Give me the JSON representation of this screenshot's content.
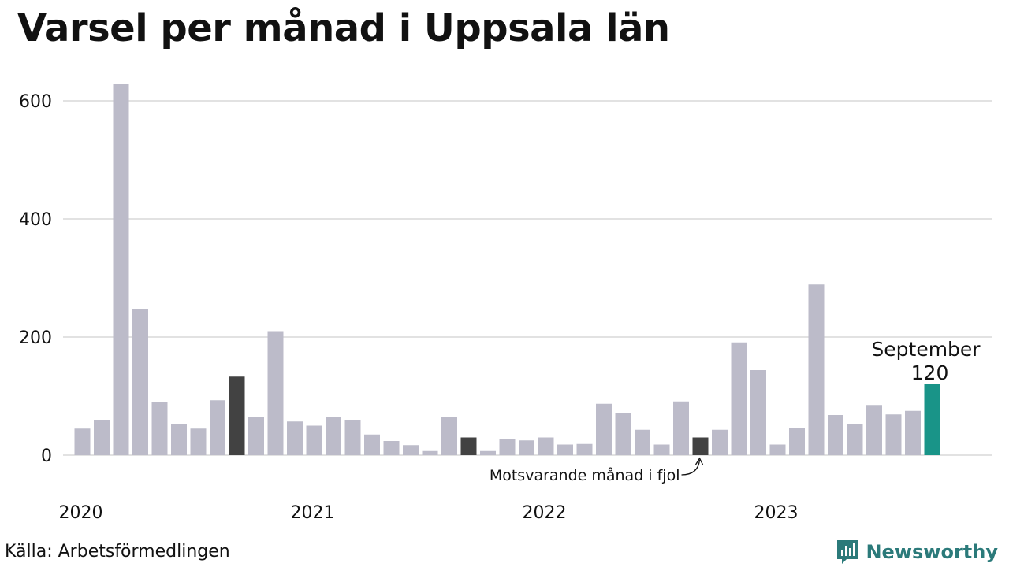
{
  "title": "Varsel per månad i Uppsala län",
  "source": "Källa: Arbetsförmedlingen",
  "brand": {
    "name": "Newsworthy",
    "icon": "newsworthy-chart-logo-icon",
    "color": "#2b7a7a"
  },
  "colors": {
    "default": "#bcbbc9",
    "highlight": "#424242",
    "latest": "#199488",
    "grid": "#e2e2e2"
  },
  "chart_data": {
    "type": "bar",
    "title": "Varsel per månad i Uppsala län",
    "xlabel": "",
    "ylabel": "",
    "ylim": [
      0,
      650
    ],
    "y_ticks": [
      0,
      200,
      400,
      600
    ],
    "grid": true,
    "x_tick_labels": [
      {
        "label": "2020",
        "index": 0
      },
      {
        "label": "2021",
        "index": 12
      },
      {
        "label": "2022",
        "index": 24
      },
      {
        "label": "2023",
        "index": 36
      }
    ],
    "categories": [
      "2020-01",
      "2020-02",
      "2020-03",
      "2020-04",
      "2020-05",
      "2020-06",
      "2020-07",
      "2020-08",
      "2020-09",
      "2020-10",
      "2020-11",
      "2020-12",
      "2021-01",
      "2021-02",
      "2021-03",
      "2021-04",
      "2021-05",
      "2021-06",
      "2021-07",
      "2021-08",
      "2021-09",
      "2021-10",
      "2021-11",
      "2021-12",
      "2022-01",
      "2022-02",
      "2022-03",
      "2022-04",
      "2022-05",
      "2022-06",
      "2022-07",
      "2022-08",
      "2022-09",
      "2022-10",
      "2022-11",
      "2022-12",
      "2023-01",
      "2023-02",
      "2023-03",
      "2023-04",
      "2023-05",
      "2023-06",
      "2023-07",
      "2023-08",
      "2023-09"
    ],
    "values": [
      45,
      60,
      628,
      248,
      90,
      52,
      45,
      93,
      133,
      65,
      210,
      57,
      50,
      65,
      60,
      35,
      24,
      17,
      7,
      65,
      30,
      7,
      28,
      25,
      30,
      18,
      19,
      87,
      71,
      43,
      18,
      91,
      30,
      43,
      191,
      144,
      18,
      46,
      289,
      68,
      53,
      85,
      69,
      75,
      120
    ],
    "highlighted_indices": [
      8,
      20,
      32
    ],
    "latest_index": 44,
    "callout": {
      "text": "Motsvarande månad i fjol",
      "index": 32
    },
    "latest_label": {
      "month": "September",
      "value": "120"
    }
  }
}
